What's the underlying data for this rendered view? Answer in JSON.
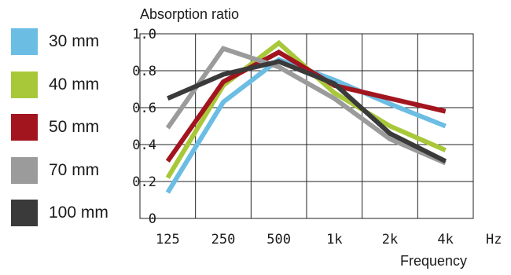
{
  "chart_data": {
    "type": "line",
    "ylabel": "Absorption ratio",
    "xlabel": "Frequency",
    "x_unit": "Hz",
    "categories": [
      "125",
      "250",
      "500",
      "1k",
      "2k",
      "4k"
    ],
    "yticks": [
      "0",
      "0.2",
      "0.4",
      "0.6",
      "0.8",
      "1.0"
    ],
    "ylim": [
      0,
      1.0
    ],
    "grid": true,
    "legend_position": "left",
    "series": [
      {
        "name": "30 mm",
        "color": "#6BBDE3",
        "values": [
          0.14,
          0.63,
          0.86,
          0.75,
          0.62,
          0.5
        ]
      },
      {
        "name": "40 mm",
        "color": "#A8C83A",
        "values": [
          0.22,
          0.72,
          0.95,
          0.68,
          0.5,
          0.37
        ]
      },
      {
        "name": "50 mm",
        "color": "#A3151E",
        "values": [
          0.31,
          0.74,
          0.9,
          0.72,
          0.65,
          0.58
        ]
      },
      {
        "name": "70 mm",
        "color": "#9B9B9B",
        "values": [
          0.49,
          0.92,
          0.82,
          0.65,
          0.43,
          0.3
        ]
      },
      {
        "name": "100 mm",
        "color": "#3A3A3A",
        "values": [
          0.65,
          0.78,
          0.85,
          0.73,
          0.46,
          0.31
        ]
      }
    ]
  }
}
